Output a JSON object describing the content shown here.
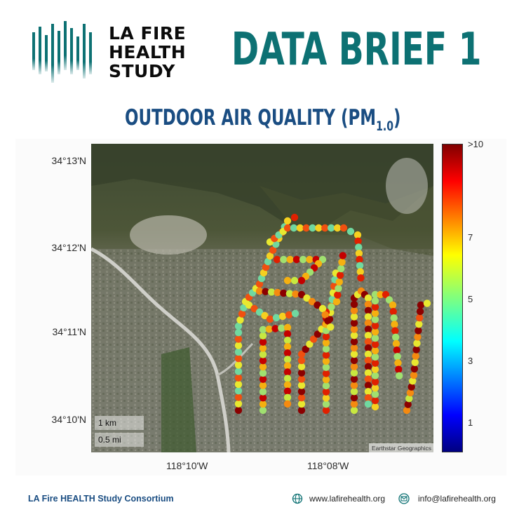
{
  "logo": {
    "line1": "LA FIRE",
    "line2": "HEALTH",
    "line3": "STUDY"
  },
  "headline": "DATA BRIEF 1",
  "subtitle": {
    "main": "OUTDOOR AIR QUALITY (PM",
    "subscript": "1.0",
    "close": ")"
  },
  "map": {
    "y_ticks": [
      "34°13'N",
      "34°12'N",
      "34°11'N",
      "34°10'N"
    ],
    "x_ticks": [
      "118°10'W",
      "118°08'W"
    ],
    "scale": {
      "km": "1 km",
      "mi": "0.5 mi"
    },
    "attribution": "Earthstar Geographics"
  },
  "colorbar": {
    "ticks": [
      ">10",
      "7",
      "5",
      "3",
      "1"
    ],
    "colormap": "jet",
    "range": [
      0,
      10
    ]
  },
  "footer": {
    "org": "LA Fire HEALTH Study Consortium",
    "website": "www.lafirehealth.org",
    "email": "info@lafirehealth.org"
  },
  "colors": {
    "teal": "#0d7173",
    "navy": "#1a4d82"
  }
}
